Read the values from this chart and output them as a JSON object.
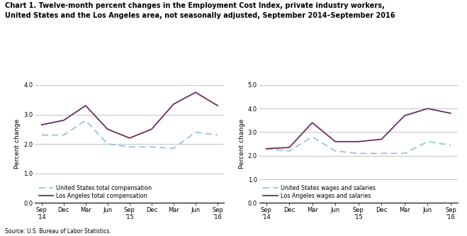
{
  "title_line1": "Chart 1. Twelve-month percent changes in the Employment Cost Index, private industry workers,",
  "title_line2": "United States and the Los Angeles area, not seasonally adjusted, September 2014–September 2016",
  "source": "Source: U.S. Bureau of Labor Statistics.",
  "ylabel": "Percent change",
  "x_labels": [
    "Sep\n'14",
    "Dec",
    "Mar",
    "Jun",
    "Sep\n'15",
    "Dec",
    "Mar",
    "Jun",
    "Sep\n'16"
  ],
  "left_chart": {
    "us_data": [
      2.3,
      2.3,
      2.8,
      2.0,
      1.9,
      1.9,
      1.85,
      2.4,
      2.3
    ],
    "la_data": [
      2.65,
      2.8,
      3.3,
      2.5,
      2.2,
      2.5,
      3.35,
      3.75,
      3.3
    ],
    "us_label": "United States total compensation",
    "la_label": "Los Angeles total compensation",
    "ylim": [
      0.0,
      4.0
    ],
    "yticks": [
      0.0,
      1.0,
      2.0,
      3.0,
      4.0
    ]
  },
  "right_chart": {
    "us_data": [
      2.3,
      2.2,
      2.8,
      2.2,
      2.1,
      2.1,
      2.1,
      2.6,
      2.45
    ],
    "la_data": [
      2.3,
      2.35,
      3.4,
      2.6,
      2.6,
      2.7,
      3.7,
      4.0,
      3.8
    ],
    "us_label": "United States wages and salaries",
    "la_label": "Los Angeles wages and salaries",
    "ylim": [
      0.0,
      5.0
    ],
    "yticks": [
      0.0,
      1.0,
      2.0,
      3.0,
      4.0,
      5.0
    ]
  },
  "us_color": "#92c5de",
  "la_color": "#6b2d5e",
  "background_color": "#ffffff",
  "grid_color": "#aaaaaa",
  "title_fontsize": 7.0,
  "axis_label_fontsize": 6.5,
  "tick_fontsize": 6.0,
  "legend_fontsize": 5.8
}
